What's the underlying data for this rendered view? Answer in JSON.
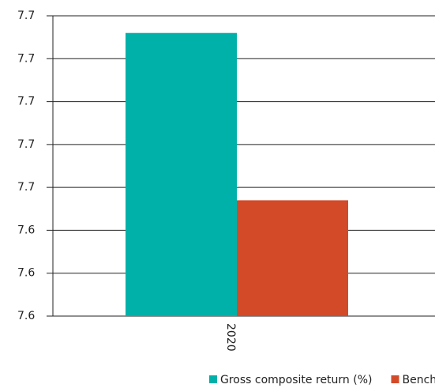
{
  "chart_data": {
    "type": "bar",
    "categories": [
      "2020"
    ],
    "series": [
      {
        "name": "Gross composite return (%)",
        "color": "#00b1a9",
        "values": [
          7.686
        ]
      },
      {
        "name": "Benchmark return (%)",
        "color": "#d34a29",
        "values": [
          7.647
        ]
      }
    ],
    "ylim": [
      7.62,
      7.69
    ],
    "yticks": [
      {
        "value": 7.62,
        "label": "7.6"
      },
      {
        "value": 7.63,
        "label": "7.6"
      },
      {
        "value": 7.64,
        "label": "7.6"
      },
      {
        "value": 7.65,
        "label": "7.7"
      },
      {
        "value": 7.66,
        "label": "7.7"
      },
      {
        "value": 7.67,
        "label": "7.7"
      },
      {
        "value": 7.68,
        "label": "7.7"
      },
      {
        "value": 7.69,
        "label": "7.7"
      }
    ],
    "grid": true,
    "legend": "bottom"
  }
}
